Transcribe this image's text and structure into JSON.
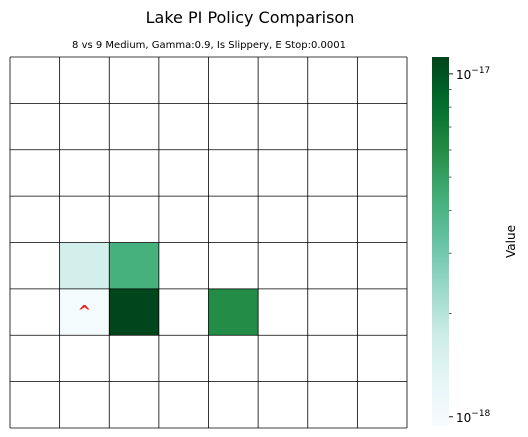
{
  "chart_data": {
    "type": "heatmap",
    "title": "Lake PI Policy Comparison",
    "subtitle": "8 vs 9 Medium, Gamma:0.9, Is Slippery, E Stop:0.0001",
    "rows": 8,
    "cols": 8,
    "cells": [
      {
        "row": 4,
        "col": 1,
        "value": 1.6e-18
      },
      {
        "row": 4,
        "col": 2,
        "value": 4.2e-18
      },
      {
        "row": 5,
        "col": 1,
        "value": 1e-18,
        "annotation": "^"
      },
      {
        "row": 5,
        "col": 2,
        "value": 1.1e-17
      },
      {
        "row": 5,
        "col": 4,
        "value": 6e-18
      }
    ],
    "colorbar": {
      "label": "Value",
      "scale": "log",
      "range": [
        9.4e-19,
        1.12e-17
      ],
      "major_ticks": [
        {
          "value": 1e-18,
          "label": "10",
          "exp": "−18"
        },
        {
          "value": 1e-17,
          "label": "10",
          "exp": "−17"
        }
      ],
      "minor_ticks": [
        2e-18,
        3e-18,
        4e-18,
        5e-18,
        6e-18,
        7e-18,
        8e-18,
        9e-18
      ],
      "colormap": "BuGn"
    },
    "grid": true,
    "annotation_color": "#e8231d"
  }
}
